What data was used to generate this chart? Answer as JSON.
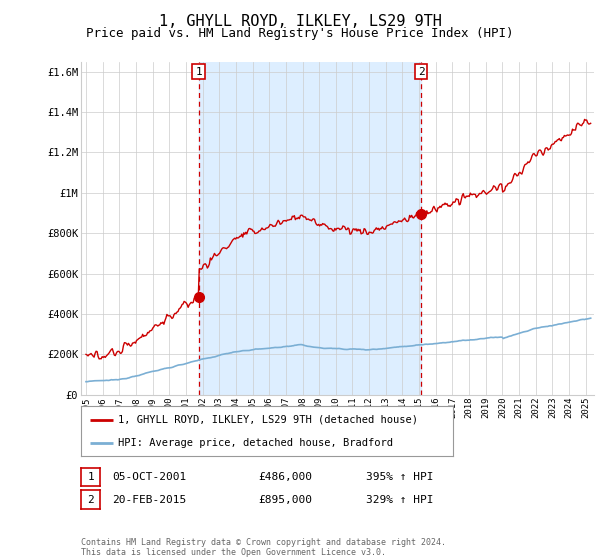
{
  "title": "1, GHYLL ROYD, ILKLEY, LS29 9TH",
  "subtitle": "Price paid vs. HM Land Registry's House Price Index (HPI)",
  "title_fontsize": 11,
  "subtitle_fontsize": 9,
  "ylim": [
    0,
    1650000
  ],
  "xlim_start": 1994.7,
  "xlim_end": 2025.5,
  "yticks": [
    0,
    200000,
    400000,
    600000,
    800000,
    1000000,
    1200000,
    1400000,
    1600000
  ],
  "ytick_labels": [
    "£0",
    "£200K",
    "£400K",
    "£600K",
    "£800K",
    "£1M",
    "£1.2M",
    "£1.4M",
    "£1.6M"
  ],
  "xtick_years": [
    1995,
    1996,
    1997,
    1998,
    1999,
    2000,
    2001,
    2002,
    2003,
    2004,
    2005,
    2006,
    2007,
    2008,
    2009,
    2010,
    2011,
    2012,
    2013,
    2014,
    2015,
    2016,
    2017,
    2018,
    2019,
    2020,
    2021,
    2022,
    2023,
    2024,
    2025
  ],
  "sale1_x": 2001.76,
  "sale1_y": 486000,
  "sale1_label": "1",
  "sale2_x": 2015.13,
  "sale2_y": 895000,
  "sale2_label": "2",
  "hpi_color": "#7bafd4",
  "hpi_fill_color": "#ddeeff",
  "house_color": "#cc0000",
  "vline_color": "#cc0000",
  "vline_style": "--",
  "legend_house": "1, GHYLL ROYD, ILKLEY, LS29 9TH (detached house)",
  "legend_hpi": "HPI: Average price, detached house, Bradford",
  "table_row1": [
    "1",
    "05-OCT-2001",
    "£486,000",
    "395% ↑ HPI"
  ],
  "table_row2": [
    "2",
    "20-FEB-2015",
    "£895,000",
    "329% ↑ HPI"
  ],
  "footer": "Contains HM Land Registry data © Crown copyright and database right 2024.\nThis data is licensed under the Open Government Licence v3.0.",
  "background_color": "#ffffff",
  "grid_color": "#cccccc"
}
